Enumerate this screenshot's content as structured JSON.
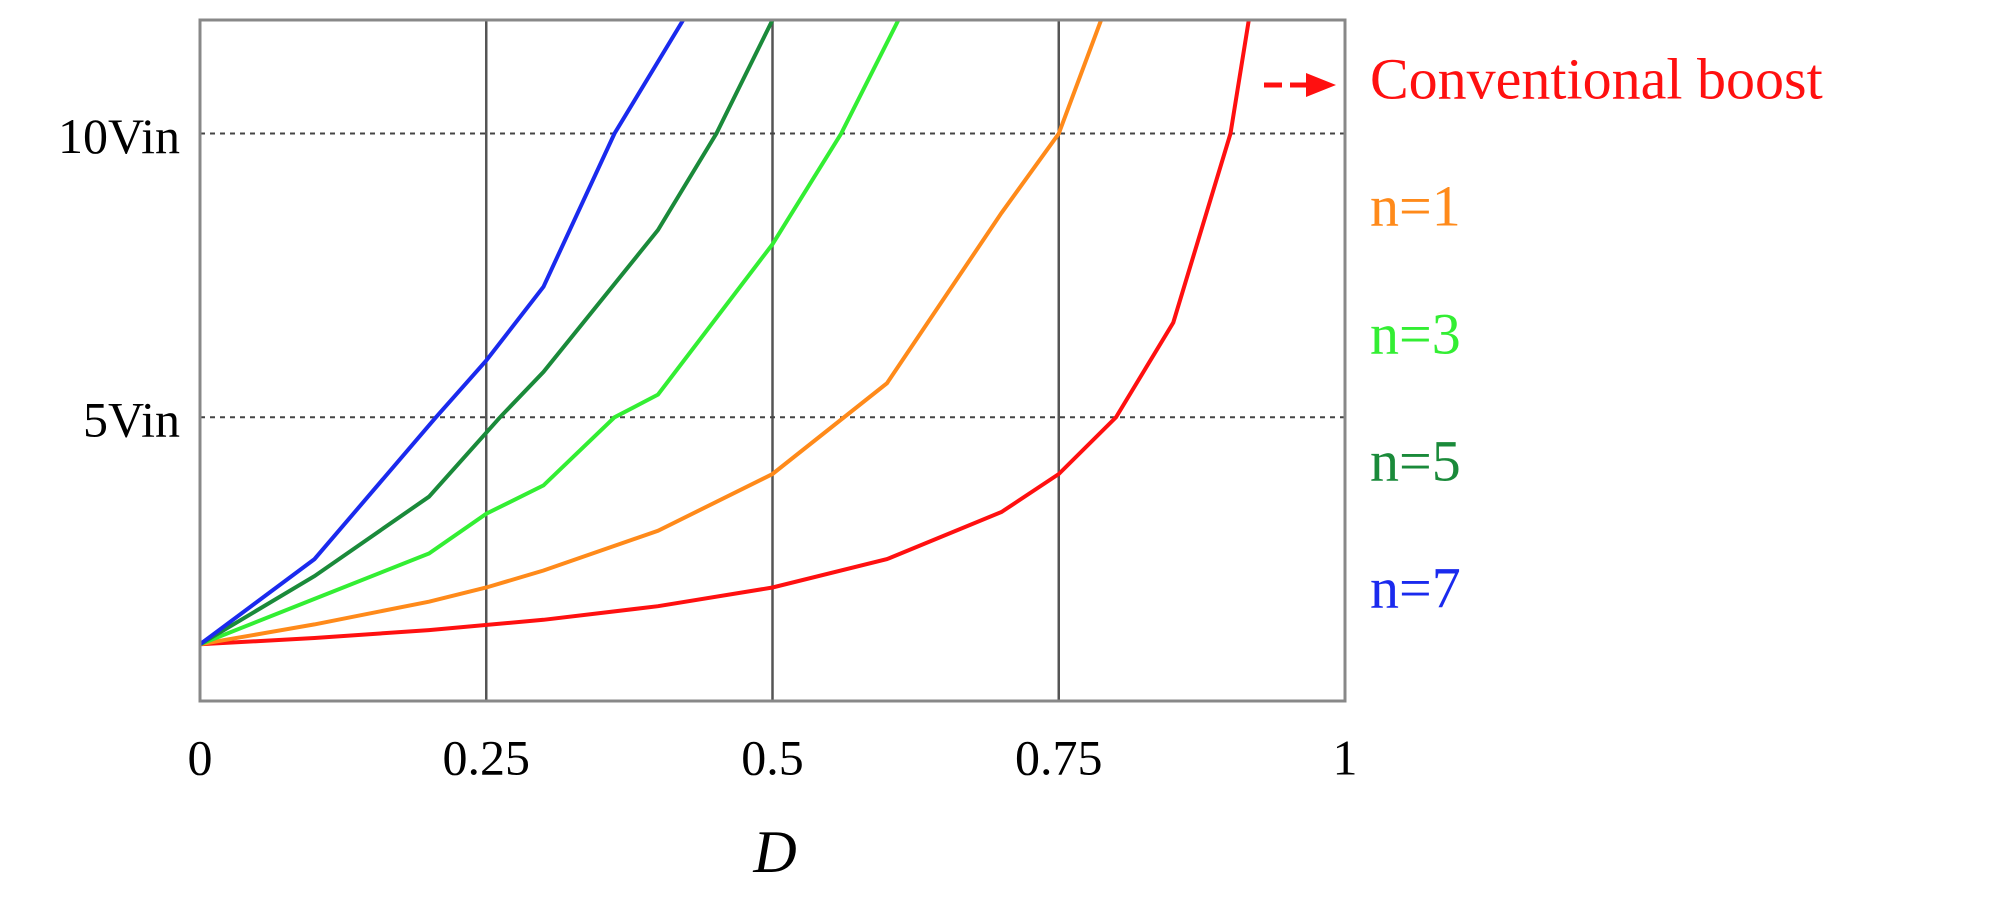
{
  "chart_data": {
    "type": "line",
    "x_label": "D",
    "xlim": [
      0,
      1
    ],
    "xticks": [
      0,
      0.25,
      0.5,
      0.75,
      1
    ],
    "ylim": [
      0,
      12
    ],
    "yticks": [
      {
        "value": 5,
        "label": "5Vin"
      },
      {
        "value": 10,
        "label": "10Vin"
      }
    ],
    "grid": true,
    "series": [
      {
        "name": "Conventional boost",
        "color": "#ff1010",
        "x": [
          0,
          0.1,
          0.2,
          0.3,
          0.4,
          0.5,
          0.6,
          0.7,
          0.75,
          0.8,
          0.85,
          0.9,
          0.916
        ],
        "values": [
          1,
          1.11,
          1.25,
          1.43,
          1.67,
          2,
          2.5,
          3.33,
          4,
          5,
          6.67,
          10,
          12
        ]
      },
      {
        "name": "n=1",
        "color": "#ff8a1a",
        "x": [
          0,
          0.1,
          0.2,
          0.25,
          0.3,
          0.4,
          0.5,
          0.6,
          0.7,
          0.75,
          0.787
        ],
        "values": [
          1,
          1.35,
          1.75,
          2,
          2.3,
          3,
          4,
          5.6,
          8.6,
          10,
          12
        ]
      },
      {
        "name": "n=3",
        "color": "#33ee33",
        "x": [
          0,
          0.1,
          0.2,
          0.25,
          0.3,
          0.362,
          0.4,
          0.5,
          0.56,
          0.61
        ],
        "values": [
          1,
          1.8,
          2.6,
          3.3,
          3.8,
          5,
          5.4,
          8.05,
          10,
          12
        ]
      },
      {
        "name": "n=5",
        "color": "#1a8a3a",
        "x": [
          0,
          0.1,
          0.2,
          0.262,
          0.3,
          0.4,
          0.451,
          0.5
        ],
        "values": [
          1,
          2.2,
          3.6,
          5,
          5.8,
          8.3,
          10,
          12
        ]
      },
      {
        "name": "n=7",
        "color": "#1a2aee",
        "x": [
          0,
          0.1,
          0.206,
          0.25,
          0.3,
          0.362,
          0.422
        ],
        "values": [
          1,
          2.5,
          5,
          6,
          7.3,
          10,
          12
        ]
      }
    ]
  }
}
